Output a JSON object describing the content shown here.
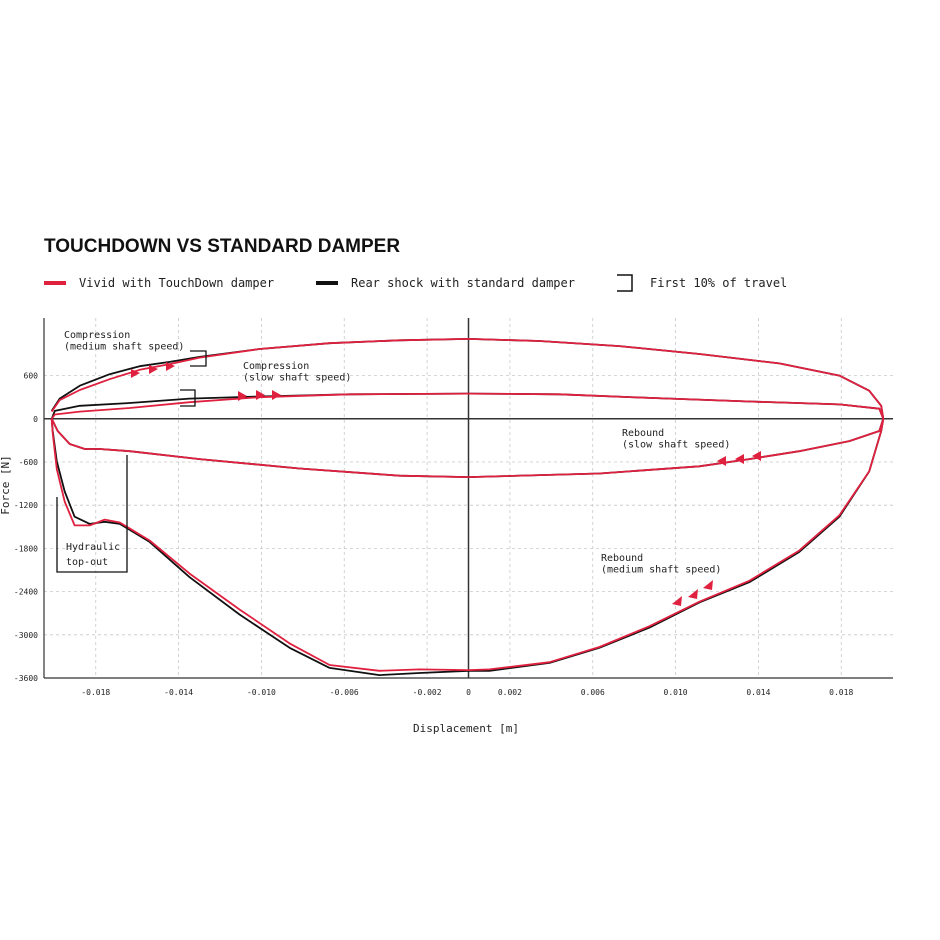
{
  "chart_data": {
    "type": "line",
    "title": "TOUCHDOWN VS STANDARD DAMPER",
    "xlabel": "Displacement [m]",
    "ylabel": "Force [N]",
    "xlim": [
      -0.0205,
      0.0205
    ],
    "ylim": [
      -3600,
      1400
    ],
    "xticks": [
      -0.018,
      -0.014,
      {
        "value": -0.01,
        "label": "-0.010"
      },
      -0.006,
      -0.002,
      0,
      0.002,
      0.006,
      {
        "value": 0.01,
        "label": "0.010"
      },
      0.014,
      0.018
    ],
    "yticks": [
      600,
      0,
      -600,
      -1200,
      -1800,
      -2400,
      -3000,
      -3600
    ],
    "grid": true,
    "bracket_label": "First 10% of travel",
    "annotations": [
      [
        "Compression",
        "(medium shaft speed)"
      ],
      [
        "Compression",
        "(slow shaft speed)"
      ],
      [
        "Rebound",
        "(slow shaft speed)"
      ],
      [
        "Rebound",
        "(medium shaft speed)"
      ],
      [
        "Hydraulic",
        "top-out"
      ]
    ],
    "series": [
      {
        "name": "Rear shock with standard damper",
        "color": "#111111",
        "x": [
          -0.02013,
          -0.01974,
          -0.01877,
          -0.01733,
          -0.01588,
          -0.01443,
          -0.01298,
          -0.01009,
          -0.00671,
          -0.00333,
          0,
          0.00343,
          0.00729,
          0.01115,
          0.01501,
          0.01791,
          0.01935,
          0.01993,
          0.02003,
          0.01993,
          0.01935,
          0.01791,
          0.01597,
          0.01356,
          0.01115,
          0.00874,
          0.00632,
          0.00391,
          0.00101,
          0,
          -0.00236,
          -0.0043,
          -0.00671,
          -0.00864,
          -0.01105,
          -0.01347,
          -0.0154,
          -0.01684,
          -0.01757,
          -0.01829,
          -0.01902,
          -0.0195,
          -0.01988,
          -0.02008,
          -0.02013,
          null,
          -0.02013,
          -0.01998,
          -0.01877,
          -0.01636,
          -0.01347,
          -0.01009,
          -0.00574,
          0,
          0.00439,
          0.00874,
          0.01356,
          0.01791,
          0.01984,
          0.02003,
          0.01984,
          0.01839,
          0.01597,
          0.01356,
          0.01115,
          0.00632,
          0,
          -0.00333,
          -0.00816,
          -0.01298,
          -0.01636,
          -0.01781,
          -0.01853,
          -0.01926,
          -0.01984,
          -0.02013
        ],
        "values": [
          110,
          280,
          460,
          620,
          730,
          790,
          860,
          970,
          1050,
          1090,
          1110,
          1080,
          1010,
          900,
          770,
          600,
          390,
          180,
          0,
          -170,
          -730,
          -1360,
          -1850,
          -2270,
          -2550,
          -2900,
          -3180,
          -3390,
          -3500,
          -3500,
          -3530,
          -3560,
          -3460,
          -3180,
          -2720,
          -2200,
          -1710,
          -1460,
          -1430,
          -1460,
          -1360,
          -1010,
          -590,
          -170,
          0,
          null,
          0,
          110,
          180,
          220,
          280,
          310,
          340,
          350,
          340,
          290,
          240,
          200,
          140,
          0,
          -170,
          -310,
          -450,
          -560,
          -660,
          -760,
          -810,
          -790,
          -690,
          -560,
          -450,
          -420,
          -420,
          -350,
          -170,
          0
        ]
      },
      {
        "name": "Vivid with TouchDown damper",
        "color": "#e0203f",
        "x": [
          -0.02013,
          -0.01974,
          -0.01877,
          -0.01733,
          -0.01588,
          -0.01443,
          -0.01298,
          -0.01009,
          -0.00671,
          -0.00333,
          0,
          0.00343,
          0.00729,
          0.01115,
          0.01501,
          0.01791,
          0.01935,
          0.01993,
          0.02003,
          0.01993,
          0.01935,
          0.01791,
          0.01597,
          0.01356,
          0.01115,
          0.00874,
          0.00632,
          0.00391,
          0.00101,
          0,
          -0.00236,
          -0.0043,
          -0.00671,
          -0.00864,
          -0.01105,
          -0.01347,
          -0.0154,
          -0.01684,
          -0.01757,
          -0.01829,
          -0.01902,
          -0.0195,
          -0.01988,
          -0.02008,
          -0.02013,
          null,
          -0.02013,
          -0.01998,
          -0.01877,
          -0.01636,
          -0.01347,
          -0.01009,
          -0.00574,
          0,
          0.00439,
          0.00874,
          0.01356,
          0.01791,
          0.01984,
          0.02003,
          0.01984,
          0.01839,
          0.01597,
          0.01356,
          0.01115,
          0.00632,
          0,
          -0.00333,
          -0.00816,
          -0.01298,
          -0.01636,
          -0.01781,
          -0.01853,
          -0.01926,
          -0.01984,
          -0.02013
        ],
        "values": [
          100,
          260,
          400,
          550,
          680,
          760,
          850,
          970,
          1050,
          1090,
          1110,
          1080,
          1010,
          900,
          770,
          600,
          390,
          180,
          0,
          -170,
          -730,
          -1340,
          -1830,
          -2250,
          -2540,
          -2880,
          -3170,
          -3380,
          -3480,
          -3490,
          -3480,
          -3500,
          -3420,
          -3120,
          -2650,
          -2150,
          -1690,
          -1440,
          -1400,
          -1480,
          -1480,
          -1150,
          -700,
          -200,
          0,
          null,
          0,
          60,
          100,
          150,
          230,
          300,
          340,
          350,
          340,
          290,
          240,
          200,
          140,
          0,
          -170,
          -310,
          -450,
          -560,
          -660,
          -760,
          -810,
          -790,
          -690,
          -560,
          -450,
          -420,
          -420,
          -350,
          -170,
          0
        ]
      }
    ]
  }
}
